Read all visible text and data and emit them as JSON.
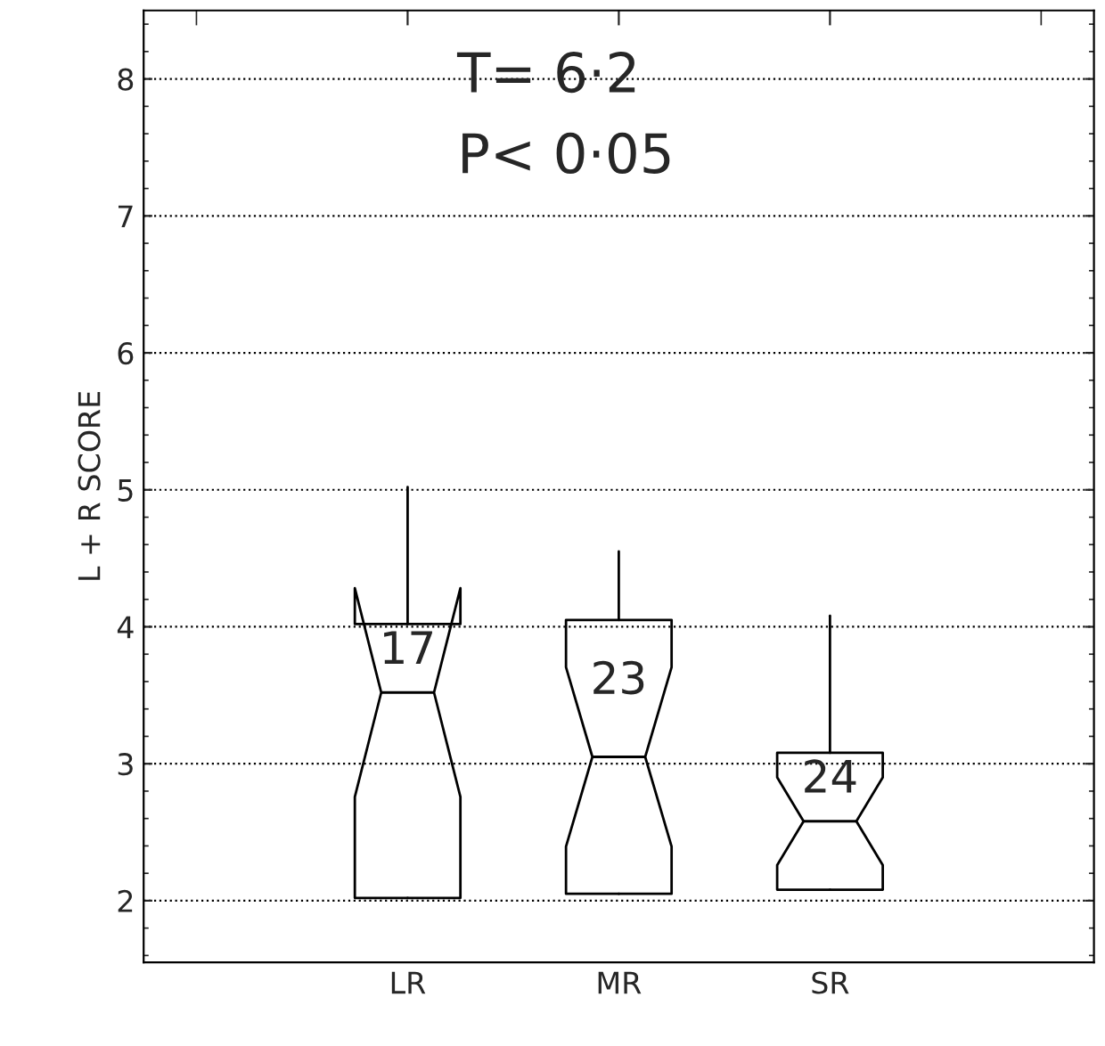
{
  "chart_data": {
    "type": "box",
    "ylabel": "L + R SCORE",
    "categories": [
      "LR",
      "MR",
      "SR"
    ],
    "boxes": [
      {
        "low": 2.02,
        "q1": 2.02,
        "median": 3.52,
        "q3": 4.02,
        "high": 5.02
      },
      {
        "low": 2.05,
        "q1": 2.05,
        "median": 3.05,
        "q3": 4.05,
        "high": 4.55
      },
      {
        "low": 2.08,
        "q1": 2.08,
        "median": 2.58,
        "q3": 3.08,
        "high": 4.08
      }
    ],
    "annotations": [
      "17",
      "23",
      "24",
      "T= 6·2",
      "P< 0·05"
    ],
    "ylim": [
      1.55,
      8.5
    ],
    "yticks": [
      2,
      3,
      4,
      5,
      6,
      7,
      8
    ],
    "grid": "y"
  }
}
